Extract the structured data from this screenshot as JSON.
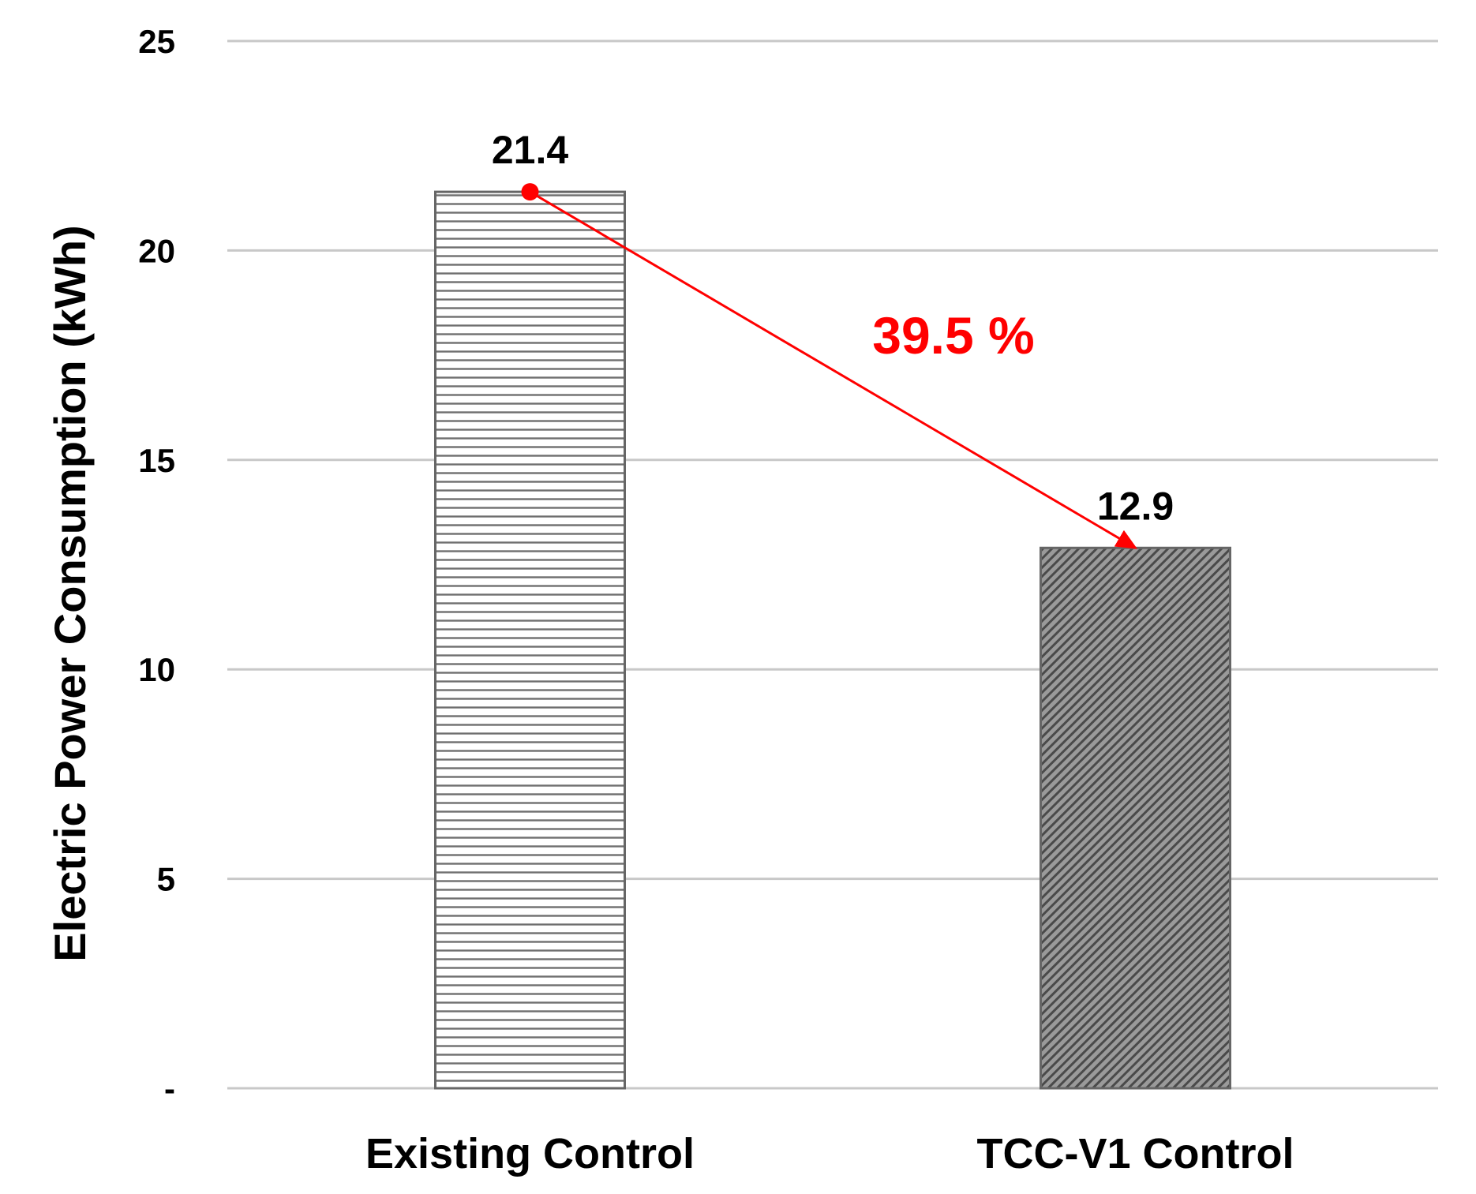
{
  "chart_data": {
    "type": "bar",
    "categories": [
      "Existing Control",
      "TCC-V1 Control"
    ],
    "values": [
      21.4,
      12.9
    ],
    "data_labels": [
      "21.4",
      "12.9"
    ],
    "title": "",
    "xlabel": "",
    "ylabel": "Electric Power Consumption (kWh)",
    "ylim": [
      0,
      25
    ],
    "yticks": [
      0,
      5,
      10,
      15,
      20,
      25
    ],
    "ytick_labels": [
      "-",
      "5",
      "10",
      "15",
      "20",
      "25"
    ],
    "grid": true,
    "legend": "none",
    "annotation": {
      "text": "39.5 %",
      "color": "#ff0000",
      "arrow_from": "Existing Control",
      "arrow_to": "TCC-V1 Control"
    },
    "bar_patterns": [
      "horizontal-lines",
      "diagonal-hatch"
    ],
    "colors": {
      "grid": "#c8c8c8",
      "bar_stroke": "#666666",
      "arrow": "#ff0000"
    }
  }
}
